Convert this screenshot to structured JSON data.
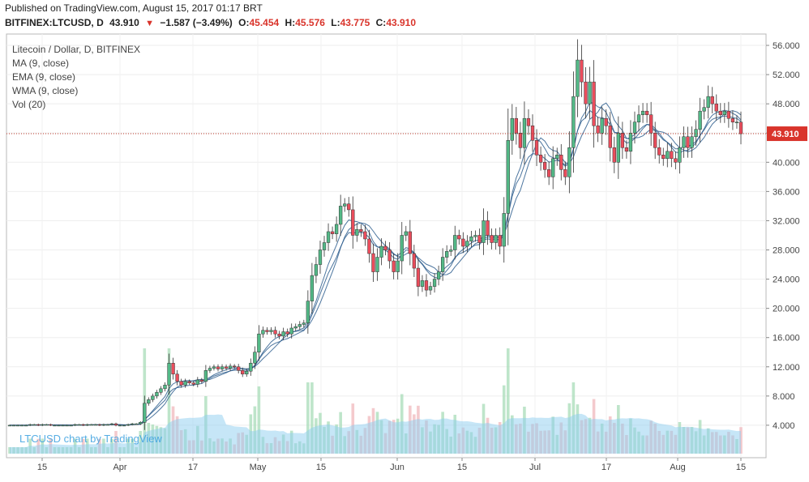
{
  "header": {
    "published": "Published on TradingView.com, August 15, 2017 01:17 BRT",
    "symbol": "BITFINEX:LTCUSD, D",
    "last": "43.910",
    "change": "−1.587 (−3.49%)",
    "o_label": "O:",
    "o_value": "45.454",
    "h_label": "H:",
    "h_value": "45.576",
    "l_label": "L:",
    "l_value": "43.775",
    "c_label": "C:",
    "c_value": "43.910"
  },
  "legend": {
    "title": "Litecoin / Dollar, D, BITFINEX",
    "ma": "MA (9, close)",
    "ema": "EMA (9, close)",
    "wma": "WMA (9, close)",
    "vol": "Vol (20)"
  },
  "watermark": "LTCUSD chart by TradingView",
  "colors": {
    "up": "#53b987",
    "down": "#eb4d5c",
    "ma": "#2e5e8e",
    "volUp": "#a8dcb8",
    "volDown": "#f0b8bc",
    "volMa": "#8dcdf0",
    "priceLine": "#c0392b"
  },
  "chart_data": {
    "type": "candlestick",
    "title": "Litecoin / Dollar, D, BITFINEX",
    "ylim": [
      0,
      58
    ],
    "y_ticks": [
      "4.000",
      "8.000",
      "12.000",
      "16.000",
      "20.000",
      "24.000",
      "28.000",
      "32.000",
      "36.000",
      "40.000",
      "44.000",
      "48.000",
      "52.000",
      "56.000"
    ],
    "x_ticks": [
      "15",
      "Apr",
      "17",
      "May",
      "15",
      "Jun",
      "15",
      "Jul",
      "17",
      "Aug",
      "15"
    ],
    "last_price": "43.910",
    "closes": [
      4.0,
      4.0,
      4.0,
      4.0,
      4.0,
      4.1,
      4.1,
      4.0,
      4.1,
      4.1,
      4.0,
      4.0,
      4.0,
      4.0,
      4.0,
      4.0,
      4.1,
      4.1,
      4.0,
      4.1,
      4.1,
      4.1,
      4.0,
      4.1,
      4.1,
      4.2,
      4.0,
      4.0,
      4.0,
      4.1,
      4.2,
      4.2,
      4.4,
      7.0,
      7.5,
      8.0,
      8.5,
      9.0,
      9.5,
      12.5,
      11.0,
      10.0,
      9.5,
      10.0,
      9.8,
      9.6,
      10.2,
      10.0,
      11.5,
      11.8,
      12.0,
      11.7,
      12.0,
      11.8,
      12.1,
      12.0,
      11.5,
      11.0,
      11.4,
      12.5,
      14.0,
      16.5,
      17.0,
      16.8,
      17.0,
      16.5,
      16.2,
      16.8,
      16.5,
      17.3,
      17.5,
      17.8,
      18.0,
      21.0,
      24.5,
      26.0,
      28.0,
      29.0,
      30.5,
      30.2,
      31.5,
      34.0,
      34.3,
      33.5,
      30.0,
      30.8,
      30.5,
      29.5,
      27.5,
      25.0,
      27.0,
      28.5,
      28.0,
      26.5,
      25.0,
      26.5,
      30.0,
      30.5,
      27.5,
      25.5,
      23.0,
      23.8,
      22.5,
      23.0,
      24.0,
      25.0,
      27.0,
      27.8,
      28.0,
      30.0,
      29.5,
      28.5,
      29.2,
      29.8,
      30.0,
      29.0,
      32.0,
      30.0,
      29.0,
      30.0,
      28.5,
      33.0,
      43.0,
      46.0,
      44.0,
      42.0,
      46.0,
      45.0,
      43.0,
      41.0,
      40.0,
      39.0,
      38.0,
      40.5,
      41.0,
      39.0,
      38.0,
      42.0,
      49.0,
      54.0,
      51.0,
      48.0,
      51.0,
      45.0,
      44.0,
      46.0,
      45.0,
      42.0,
      40.0,
      44.0,
      42.0,
      41.5,
      44.0,
      45.5,
      46.5,
      47.0,
      46.5,
      44.0,
      42.0,
      41.0,
      40.5,
      41.5,
      40.5,
      40.0,
      42.0,
      43.5,
      42.0,
      43.5,
      44.5,
      47.0,
      47.5,
      49.0,
      48.0,
      47.0,
      46.5,
      47.0,
      46.0,
      45.5,
      45.5,
      43.9
    ]
  }
}
